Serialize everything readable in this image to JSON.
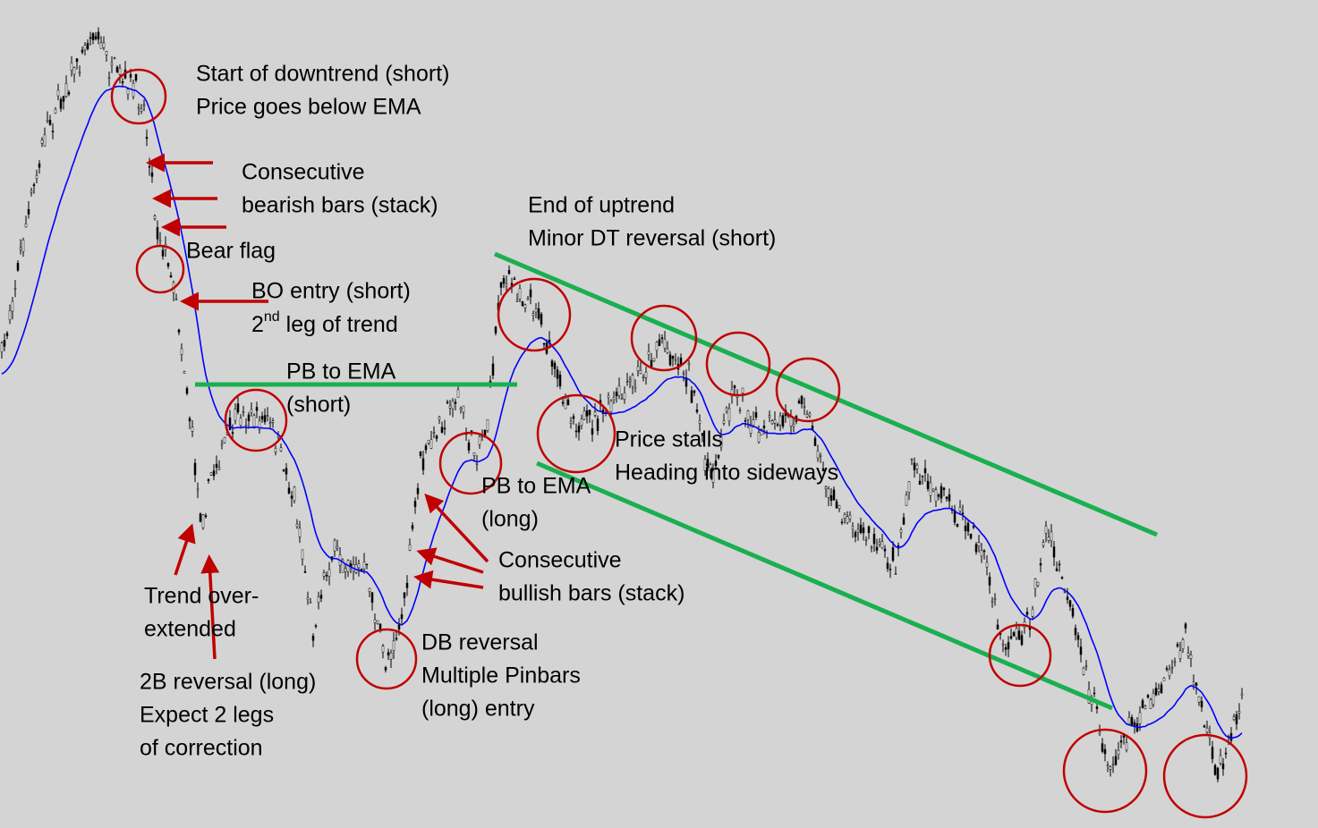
{
  "annotations": {
    "downtrend": [
      "Start of downtrend (short)",
      "Price goes below EMA"
    ],
    "bearish": [
      "Consecutive",
      "bearish bars (stack)"
    ],
    "uptrend_end": [
      "End of uptrend",
      "Minor DT reversal (short)"
    ],
    "bear_flag": [
      "Bear flag"
    ],
    "bo_entry": {
      "line1": "BO entry (short)",
      "number": "2",
      "suffix": "nd",
      "rest": " leg of trend"
    },
    "pb_short": [
      "PB to EMA",
      "(short)"
    ],
    "stalls": [
      "Price stalls",
      "Heading into sideways"
    ],
    "pb_long": [
      "PB to EMA",
      "(long)"
    ],
    "bullish": [
      "Consecutive",
      "bullish bars (stack)"
    ],
    "overextended": [
      "Trend over-",
      "extended"
    ],
    "db_reversal": [
      "DB reversal",
      "Multiple Pinbars",
      "(long) entry"
    ],
    "two_b": [
      "2B reversal (long)",
      "Expect 2 legs",
      "of correction"
    ]
  }
}
